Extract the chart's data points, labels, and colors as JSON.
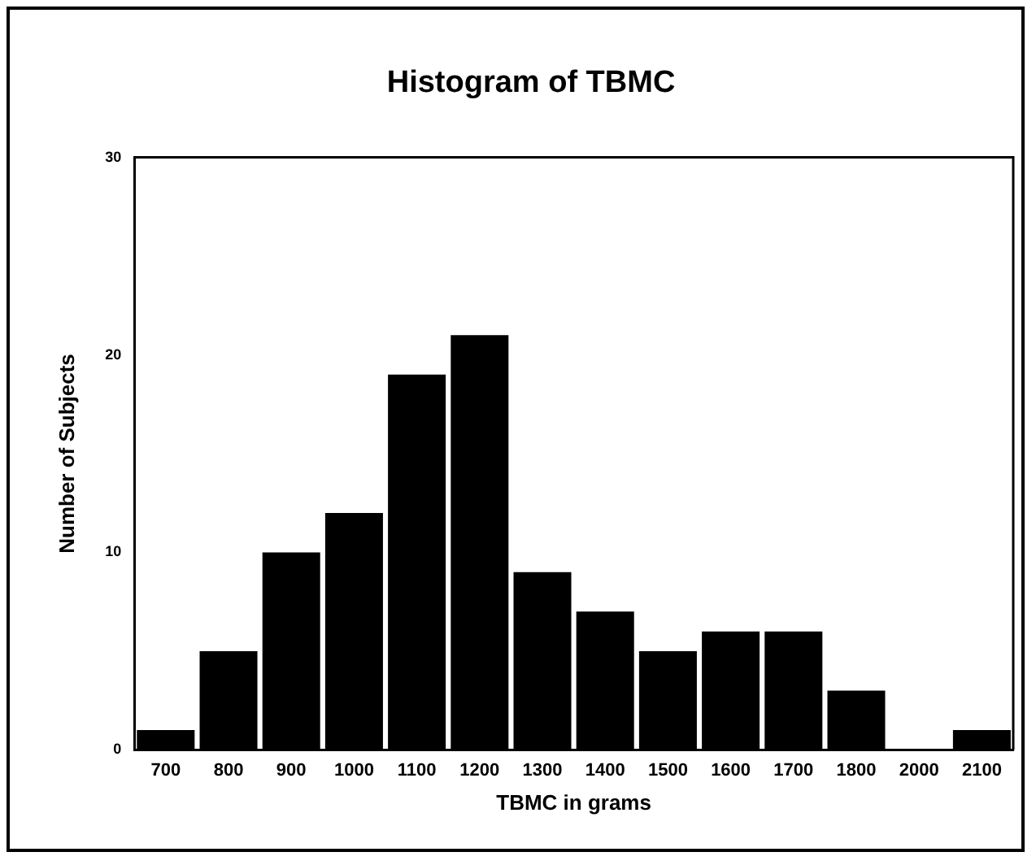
{
  "chart_data": {
    "type": "bar",
    "title": "Histogram of TBMC",
    "xlabel": "TBMC in grams",
    "ylabel": "Number of Subjects",
    "categories": [
      "700",
      "800",
      "900",
      "1000",
      "1100",
      "1200",
      "1300",
      "1400",
      "1500",
      "1600",
      "1700",
      "1800",
      "2000",
      "2100"
    ],
    "values": [
      1,
      5,
      10,
      12,
      19,
      21,
      9,
      7,
      5,
      6,
      6,
      3,
      0,
      1
    ],
    "color": "#000000",
    "ylim": [
      0,
      30
    ],
    "yticks": [
      0,
      10,
      20,
      30
    ],
    "grid": false,
    "legend": false
  }
}
